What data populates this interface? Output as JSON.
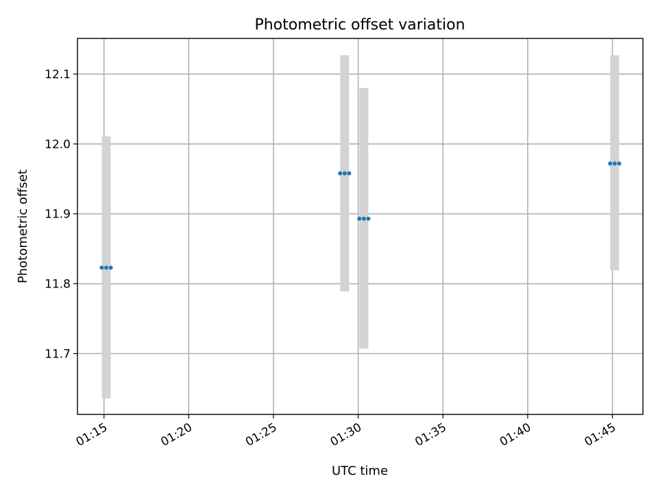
{
  "chart_data": {
    "type": "scatter",
    "title": "Photometric offset variation",
    "xlabel": "UTC time",
    "ylabel": "Photometric offset",
    "xlim": [
      "01:13:26",
      "01:46:48"
    ],
    "ylim": [
      11.613,
      12.151
    ],
    "xticks": [
      "01:15",
      "01:20",
      "01:25",
      "01:30",
      "01:35",
      "01:40",
      "01:45"
    ],
    "yticks": [
      11.7,
      11.8,
      11.9,
      12.0,
      12.1
    ],
    "grid": true,
    "colors": {
      "point": "#1f77b4",
      "errorbar": "#d3d3d3"
    },
    "groups": [
      {
        "x": [
          "01:14:52",
          "01:15:08",
          "01:15:24"
        ],
        "y": 11.823,
        "err_low": 11.636,
        "err_high": 12.011
      },
      {
        "x": [
          "01:28:56",
          "01:29:12",
          "01:29:28"
        ],
        "y": 11.958,
        "err_low": 11.789,
        "err_high": 12.127
      },
      {
        "x": [
          "01:30:04",
          "01:30:20",
          "01:30:36"
        ],
        "y": 11.893,
        "err_low": 11.707,
        "err_high": 12.08
      },
      {
        "x": [
          "01:44:52",
          "01:45:08",
          "01:45:24"
        ],
        "y": 11.972,
        "err_low": 11.819,
        "err_high": 12.127
      }
    ]
  }
}
